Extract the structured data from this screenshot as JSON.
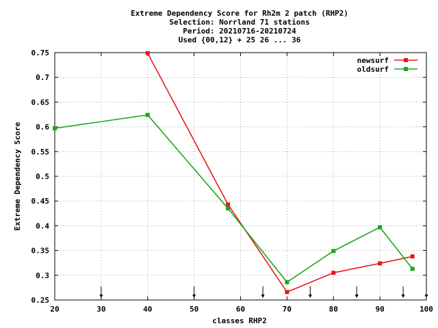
{
  "chart_data": {
    "type": "line",
    "title_lines": [
      "Extreme Dependency Score  for Rh2m 2 patch (RHP2)",
      "Selection: Norrland     71 stations",
      "Period: 20210716-20210724",
      "Used {00,12} + 25 26 ... 36"
    ],
    "xlabel": "classes RHP2",
    "ylabel": "Extreme Dependency Score",
    "xlim": [
      20,
      100
    ],
    "ylim": [
      0.25,
      0.75
    ],
    "xticks": [
      20,
      30,
      40,
      50,
      60,
      70,
      80,
      90,
      100
    ],
    "yticks": [
      0.25,
      0.3,
      0.35,
      0.4,
      0.45,
      0.5,
      0.55,
      0.6,
      0.65,
      0.7,
      0.75
    ],
    "ytick_labels": [
      "0.25",
      "0.3",
      "0.35",
      "0.4",
      "0.45",
      "0.5",
      "0.55",
      "0.6",
      "0.65",
      "0.7",
      "0.75"
    ],
    "grid": true,
    "legend_position": "top-right",
    "arrow_markers_x": [
      30,
      50,
      64.8,
      75,
      85,
      95,
      100
    ],
    "series": [
      {
        "name": "newsurf",
        "color": "#e8171b",
        "points": [
          [
            40,
            0.749
          ],
          [
            57.3,
            0.443
          ],
          [
            70,
            0.266
          ],
          [
            80,
            0.305
          ],
          [
            90,
            0.324
          ],
          [
            97,
            0.338
          ]
        ]
      },
      {
        "name": "oldsurf",
        "color": "#18a818",
        "points": [
          [
            20,
            0.597
          ],
          [
            40,
            0.624
          ],
          [
            57.3,
            0.435
          ],
          [
            70,
            0.286
          ],
          [
            80,
            0.349
          ],
          [
            90,
            0.397
          ],
          [
            97,
            0.313
          ]
        ]
      }
    ]
  }
}
